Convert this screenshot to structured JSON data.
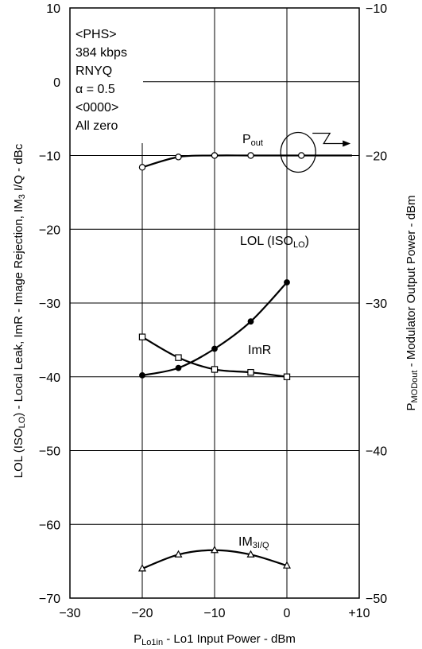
{
  "chart_data": {
    "type": "line",
    "xlabel": {
      "pre": "P",
      "sub": "Lo1in",
      "post": " - Lo1 Input Power - dBm"
    },
    "ylabel": {
      "pre": "LOL (ISO",
      "sub1": "LO",
      "mid": ") - Local Leak, ImR - Image Rejection, IM",
      "sub2": "3",
      "post": " I/Q - dBc"
    },
    "y2label": {
      "pre": "P",
      "sub": "MODout",
      "post": " - Modulator Output Power - dBm"
    },
    "xlim": [
      -30,
      10
    ],
    "ylim": [
      -70,
      10
    ],
    "y2lim": [
      -50,
      -10
    ],
    "x_ticks": [
      "−30",
      "−20",
      "−10",
      "0",
      "+10"
    ],
    "y_ticks": [
      "10",
      "0",
      "−10",
      "−20",
      "−30",
      "−40",
      "−50",
      "−60",
      "−70"
    ],
    "y2_ticks": [
      "−10",
      "−20",
      "−30",
      "−40",
      "−50"
    ],
    "grid": true,
    "conditions": [
      "<PHS>",
      "384 kbps",
      "RNYQ",
      "α = 0.5",
      "<0000>",
      "All zero"
    ],
    "series": [
      {
        "name": "Pout",
        "label_pre": "P",
        "label_sub": "out",
        "axis": "right",
        "marker": "open-circle",
        "x": [
          -20,
          -15,
          -10,
          -5,
          2
        ],
        "y": [
          -20.8,
          -20.1,
          -20.0,
          -20.0,
          -20.0
        ],
        "curve_end": 9
      },
      {
        "name": "LOL (ISOLO)",
        "label_pre": "LOL (ISO",
        "label_sub": "LO",
        "label_post": ")",
        "axis": "left",
        "marker": "filled-circle",
        "x": [
          -20,
          -15,
          -10,
          -5,
          0
        ],
        "y": [
          -39.8,
          -38.8,
          -36.2,
          -32.5,
          -27.2
        ]
      },
      {
        "name": "ImR",
        "label_pre": "ImR",
        "axis": "left",
        "marker": "open-square",
        "x": [
          -20,
          -15,
          -10,
          -5,
          0
        ],
        "y": [
          -34.6,
          -37.4,
          -39.0,
          -39.4,
          -40.0
        ]
      },
      {
        "name": "IM3I/Q",
        "label_pre": "IM",
        "label_sub": "3I/Q",
        "axis": "left",
        "marker": "open-triangle",
        "x": [
          -20,
          -15,
          -10,
          -5,
          0
        ],
        "y": [
          -66.0,
          -64.1,
          -63.5,
          -64.1,
          -65.6
        ]
      }
    ]
  }
}
